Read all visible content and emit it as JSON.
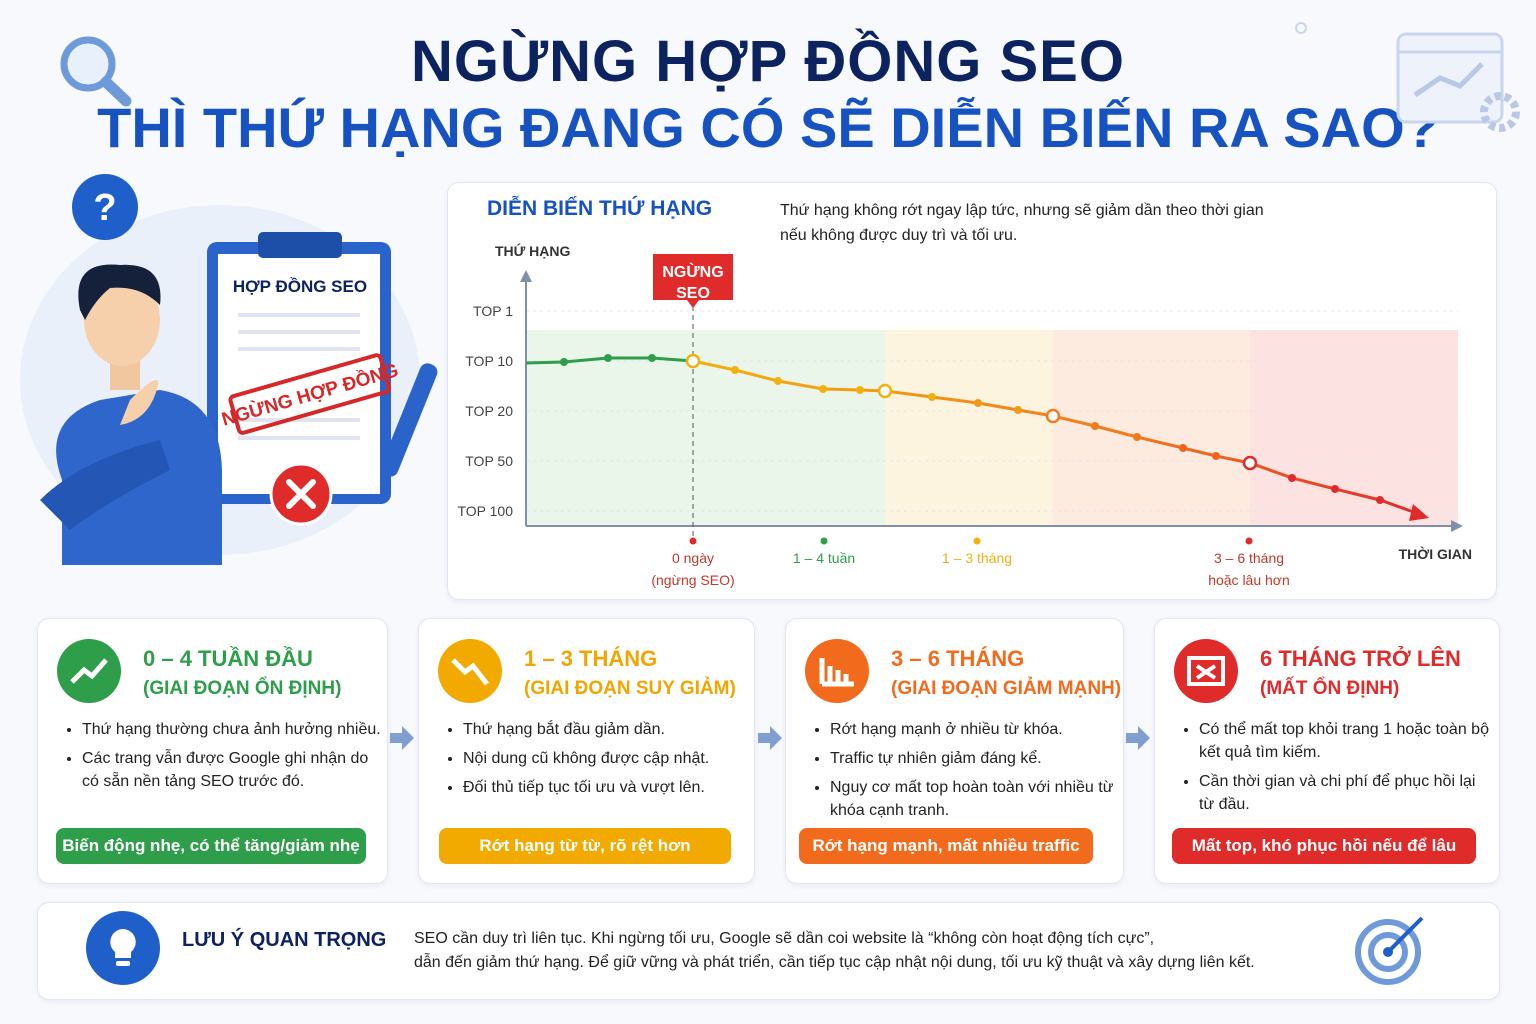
{
  "header": {
    "title_line1": "NGỪNG HỢP ĐỒNG SEO",
    "title_line2": "THÌ THỨ HẠNG ĐANG CÓ SẼ DIỄN BIẾN RA SAO?"
  },
  "illustration": {
    "clipboard_title": "HỢP ĐỒNG SEO",
    "stamp": "NGỪNG HỢP ĐỒNG"
  },
  "rank_chart": {
    "title": "DIỄN BIẾN THỨ HẠNG",
    "note_lines": [
      "Thứ hạng không rớt ngay lập tức, nhưng sẽ giảm dần theo thời gian",
      "nếu không được duy trì và tối ưu."
    ],
    "y_axis_label": "THỨ HẠNG",
    "y_labels": [
      "TOP 1",
      "TOP 10",
      "TOP 20",
      "TOP 50",
      "TOP 100"
    ],
    "x_axis_label": "THỜI GIAN",
    "marker_lines": [
      "NGỪNG",
      "SEO"
    ],
    "x_labels": [
      {
        "lines": [
          "0 ngày",
          "(ngừng SEO)"
        ]
      },
      {
        "lines": [
          "1 – 4 tuần"
        ]
      },
      {
        "lines": [
          "1 – 3 tháng"
        ]
      },
      {
        "lines": [
          "3 – 6 tháng",
          "hoặc lâu hơn"
        ]
      }
    ]
  },
  "stages": [
    {
      "title": "0 – 4 TUẦN ĐẦU",
      "subtitle": "(GIAI ĐOẠN ỔN ĐỊNH)",
      "bullets": [
        "Thứ hạng thường chưa ảnh hưởng nhiều.",
        "Các trang vẫn được Google ghi nhận do có sẵn nền tảng SEO trước đó."
      ],
      "tag": "Biến động nhẹ, có thể tăng/giảm nhẹ"
    },
    {
      "title": "1 – 3 THÁNG",
      "subtitle": "(GIAI ĐOẠN SUY GIẢM)",
      "bullets": [
        "Thứ hạng bắt đầu giảm dần.",
        "Nội dung cũ không được cập nhật.",
        "Đối thủ tiếp tục tối ưu và vượt lên."
      ],
      "tag": "Rớt hạng từ từ, rõ rệt hơn"
    },
    {
      "title": "3 – 6 THÁNG",
      "subtitle": "(GIAI ĐOẠN GIẢM MẠNH)",
      "bullets": [
        "Rớt hạng mạnh ở nhiều từ khóa.",
        "Traffic tự nhiên giảm đáng kể.",
        "Nguy cơ mất top hoàn toàn với nhiều từ khóa cạnh tranh."
      ],
      "tag": "Rớt hạng mạnh, mất nhiều traffic"
    },
    {
      "title": "6 THÁNG TRỞ LÊN",
      "subtitle": "(MẤT ỔN ĐỊNH)",
      "bullets": [
        "Có thể mất top khỏi trang 1 hoặc toàn bộ kết quả tìm kiếm.",
        "Cần thời gian và chi phí để phục hồi lại từ đầu."
      ],
      "tag": "Mất top, khó phục hồi nếu để lâu"
    }
  ],
  "note": {
    "title": "LƯU Ý QUAN TRỌNG",
    "text_lines": [
      "SEO cần duy trì liên tục. Khi ngừng tối ưu, Google sẽ dần coi website là “không còn hoạt động tích cực”,",
      "dẫn đến giảm thứ hạng. Để giữ vững và phát triển, cần tiếp tục cập nhật nội dung, tối ưu kỹ thuật và xây dựng liên kết."
    ]
  }
}
